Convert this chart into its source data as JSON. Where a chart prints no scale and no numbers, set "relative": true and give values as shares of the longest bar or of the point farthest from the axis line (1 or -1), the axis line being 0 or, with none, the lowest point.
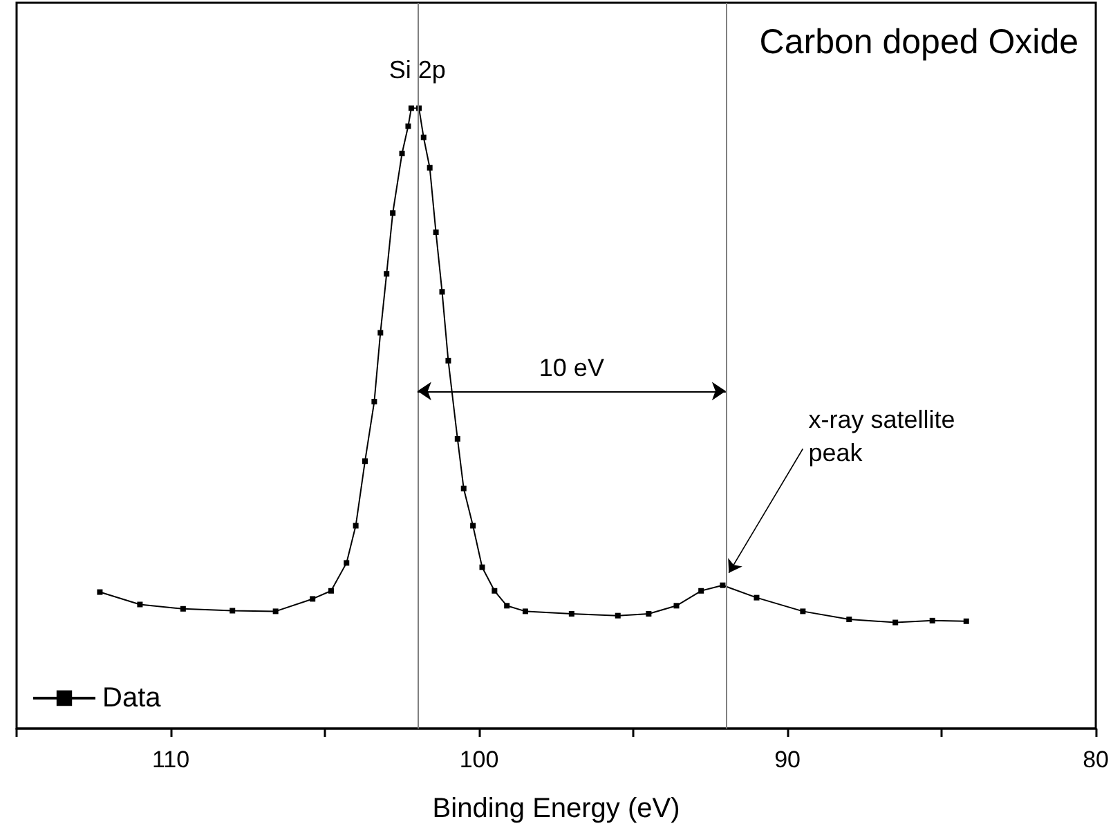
{
  "chart_data": {
    "type": "line",
    "title": "Carbon doped Oxide",
    "xlabel": "Binding Energy (eV)",
    "relative": true,
    "xlim": [
      115,
      80
    ],
    "xticks": [
      {
        "value": 115,
        "label": null
      },
      110,
      {
        "value": 105,
        "label": null
      },
      100,
      {
        "value": 95,
        "label": null
      },
      90,
      {
        "value": 85,
        "label": null
      },
      80
    ],
    "series": [
      {
        "name": "Data",
        "color": "#000000",
        "x": [
          112.3,
          111.0,
          109.6,
          108.0,
          106.6,
          105.4,
          104.8,
          104.3,
          104.0,
          103.7,
          103.4,
          103.2,
          103.0,
          102.8,
          102.5,
          102.3,
          102.2,
          101.95,
          101.8,
          101.6,
          101.4,
          101.2,
          101.0,
          100.7,
          100.5,
          100.2,
          99.9,
          99.5,
          99.1,
          98.5,
          97.0,
          95.5,
          94.5,
          93.6,
          92.8,
          92.1,
          91.0,
          89.5,
          88.0,
          86.5,
          85.3,
          84.2
        ],
        "values": [
          0.22,
          0.2,
          0.193,
          0.19,
          0.189,
          0.209,
          0.222,
          0.267,
          0.327,
          0.431,
          0.527,
          0.638,
          0.733,
          0.831,
          0.927,
          0.971,
          1.0,
          1.0,
          0.953,
          0.904,
          0.8,
          0.704,
          0.593,
          0.467,
          0.387,
          0.327,
          0.26,
          0.222,
          0.198,
          0.189,
          0.185,
          0.182,
          0.185,
          0.198,
          0.222,
          0.231,
          0.211,
          0.189,
          0.176,
          0.171,
          0.174,
          0.173
        ]
      }
    ],
    "marker": "square",
    "line_style": "solid",
    "legend": "bottom left",
    "ref_lines": [
      {
        "axis": "x",
        "value": 102,
        "color": "#808080"
      },
      {
        "axis": "x",
        "value": 92,
        "color": "#808080"
      }
    ],
    "annotations": [
      {
        "text": "Si 2p",
        "x": 102,
        "y": 1.0
      },
      "10 eV",
      "x-ray satellite peak"
    ]
  }
}
